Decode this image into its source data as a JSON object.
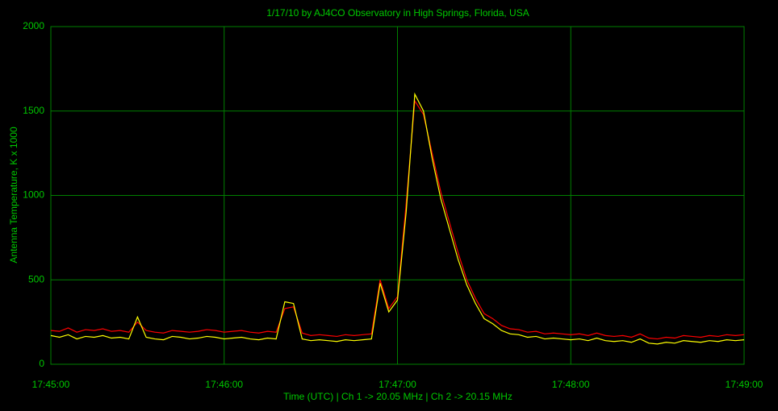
{
  "chart_data": {
    "type": "line",
    "title": "1/17/10  by  AJ4CO Observatory  in  High Springs, Florida, USA",
    "x_label": "Time (UTC)  |  Ch 1 -> 20.05 MHz  |  Ch 2 -> 20.15 MHz",
    "y_label": "Antenna Temperature, K x 1000",
    "x": [
      "17:45:00",
      "17:45:03",
      "17:45:06",
      "17:45:09",
      "17:45:12",
      "17:45:15",
      "17:45:18",
      "17:45:21",
      "17:45:24",
      "17:45:27",
      "17:45:30",
      "17:45:33",
      "17:45:36",
      "17:45:39",
      "17:45:42",
      "17:45:45",
      "17:45:48",
      "17:45:51",
      "17:45:54",
      "17:45:57",
      "17:46:00",
      "17:46:03",
      "17:46:06",
      "17:46:09",
      "17:46:12",
      "17:46:15",
      "17:46:18",
      "17:46:21",
      "17:46:24",
      "17:46:27",
      "17:46:30",
      "17:46:33",
      "17:46:36",
      "17:46:39",
      "17:46:42",
      "17:46:45",
      "17:46:48",
      "17:46:51",
      "17:46:54",
      "17:46:57",
      "17:47:00",
      "17:47:03",
      "17:47:06",
      "17:47:09",
      "17:47:12",
      "17:47:15",
      "17:47:18",
      "17:47:21",
      "17:47:24",
      "17:47:27",
      "17:47:30",
      "17:47:33",
      "17:47:36",
      "17:47:39",
      "17:47:42",
      "17:47:45",
      "17:47:48",
      "17:47:51",
      "17:47:54",
      "17:47:57",
      "17:48:00",
      "17:48:03",
      "17:48:06",
      "17:48:09",
      "17:48:12",
      "17:48:15",
      "17:48:18",
      "17:48:21",
      "17:48:24",
      "17:48:27",
      "17:48:30",
      "17:48:33",
      "17:48:36",
      "17:48:39",
      "17:48:42",
      "17:48:45",
      "17:48:48",
      "17:48:51",
      "17:48:54",
      "17:48:57",
      "17:49:00"
    ],
    "series": [
      {
        "color": "#ff0000",
        "values": [
          200,
          195,
          215,
          190,
          205,
          200,
          210,
          195,
          200,
          190,
          250,
          200,
          190,
          185,
          200,
          195,
          190,
          195,
          205,
          200,
          190,
          195,
          200,
          190,
          185,
          195,
          190,
          330,
          340,
          185,
          170,
          175,
          170,
          165,
          175,
          170,
          175,
          180,
          500,
          330,
          400,
          950,
          1560,
          1480,
          1250,
          1020,
          840,
          660,
          500,
          390,
          300,
          270,
          230,
          210,
          205,
          190,
          195,
          180,
          185,
          180,
          175,
          180,
          170,
          185,
          170,
          165,
          170,
          160,
          180,
          155,
          150,
          160,
          155,
          170,
          165,
          160,
          170,
          165,
          175,
          170,
          175
        ]
      },
      {
        "color": "#ffff00",
        "values": [
          170,
          160,
          175,
          150,
          165,
          160,
          170,
          155,
          160,
          150,
          280,
          160,
          150,
          145,
          165,
          160,
          150,
          155,
          165,
          160,
          150,
          155,
          160,
          150,
          145,
          155,
          150,
          370,
          360,
          150,
          140,
          145,
          140,
          135,
          145,
          140,
          145,
          150,
          480,
          310,
          380,
          900,
          1600,
          1500,
          1220,
          980,
          800,
          620,
          470,
          360,
          270,
          240,
          200,
          180,
          175,
          160,
          165,
          150,
          155,
          150,
          145,
          150,
          140,
          155,
          140,
          135,
          140,
          130,
          150,
          125,
          120,
          130,
          125,
          140,
          135,
          130,
          140,
          135,
          145,
          140,
          145
        ]
      }
    ],
    "xlim": [
      "17:45:00",
      "17:49:00"
    ],
    "xticks": [
      "17:45:00",
      "17:46:00",
      "17:47:00",
      "17:48:00",
      "17:49:00"
    ],
    "ylim": [
      0,
      2000
    ],
    "yticks": [
      0,
      500,
      1000,
      1500,
      2000
    ],
    "grid": true,
    "grid_color": "#008000",
    "text_color": "#00c800"
  }
}
